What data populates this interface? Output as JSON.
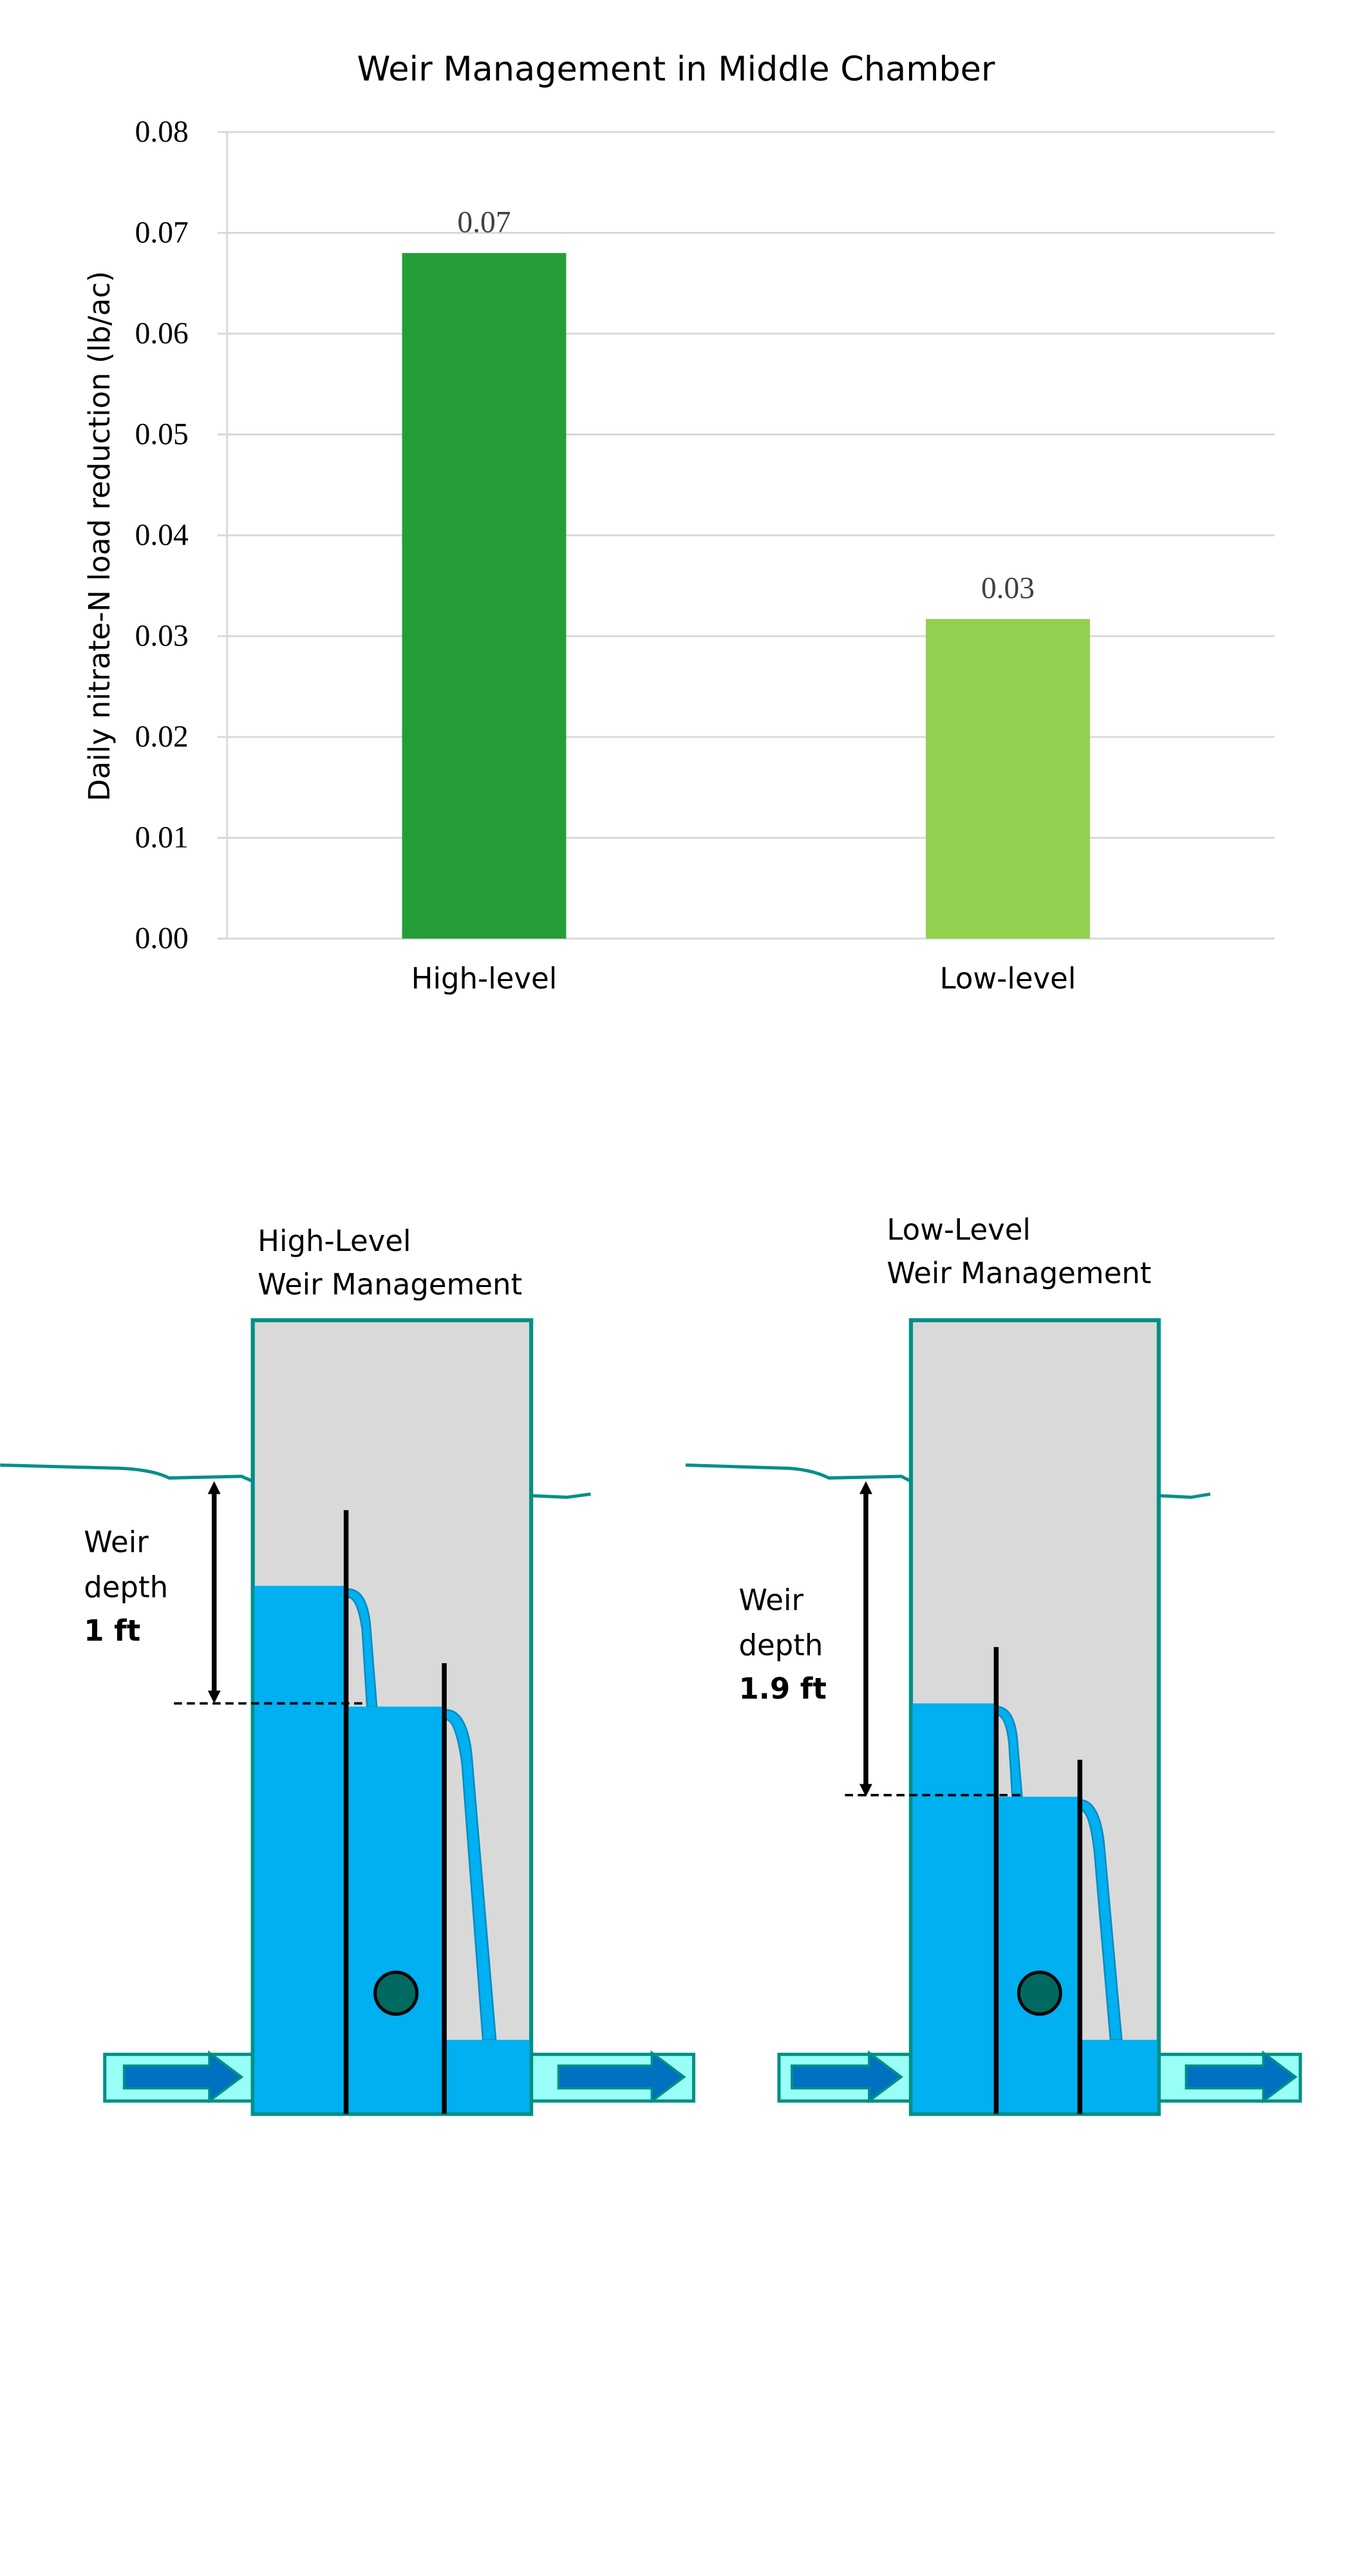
{
  "chart_data": {
    "type": "bar",
    "title": "Weir Management in Middle Chamber",
    "xlabel": "",
    "ylabel": "Daily nitrate-N load reduction (lb/ac)",
    "categories": [
      "High-level",
      "Low-level"
    ],
    "values": [
      0.068,
      0.0317
    ],
    "data_labels": [
      "0.07",
      "0.03"
    ],
    "bar_colors": [
      "#259e3a",
      "#92d050"
    ],
    "ylim": [
      0,
      0.08
    ],
    "yticks": [
      "0.00",
      "0.01",
      "0.02",
      "0.03",
      "0.04",
      "0.05",
      "0.06",
      "0.07",
      "0.08"
    ],
    "grid": true,
    "legend": "none"
  },
  "diagrams": {
    "colors": {
      "chamber_border": "#009086",
      "chamber_fill": "#d9d9d9",
      "water": "#00b0f0",
      "pipe": "#99fff6",
      "flow_arrow": "#0070c0",
      "outlet": "#006a60"
    },
    "high": {
      "title_line1": "High-Level",
      "title_line2": "Weir Management",
      "depth_line1": "Weir",
      "depth_line2": "depth",
      "depth_value": "1 ft"
    },
    "low": {
      "title_line1": "Low-Level",
      "title_line2": "Weir Management",
      "depth_line1": "Weir",
      "depth_line2": "depth",
      "depth_value": "1.9 ft"
    }
  }
}
